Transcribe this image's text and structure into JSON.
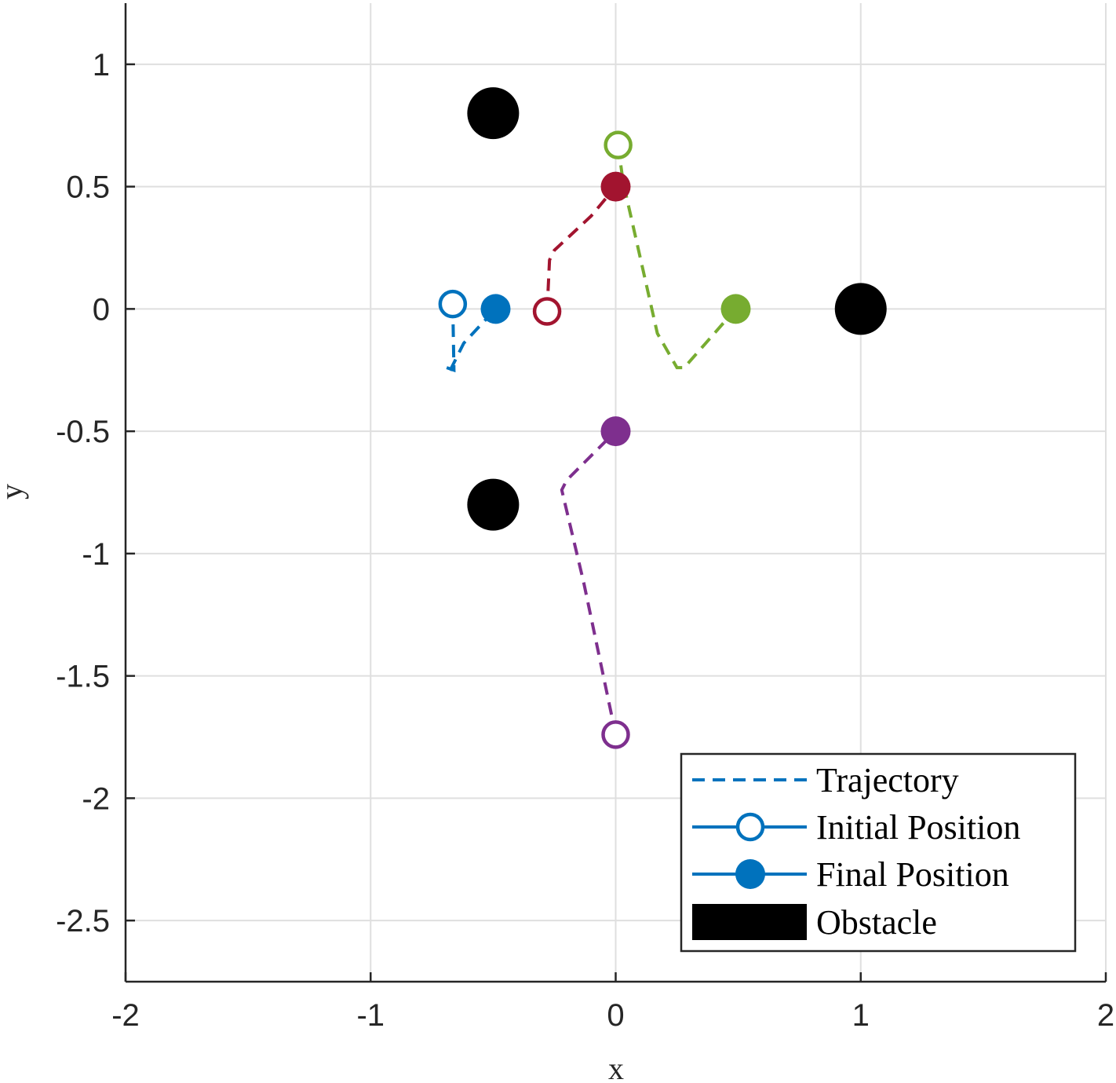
{
  "chart_data": {
    "type": "line",
    "xlabel": "x",
    "ylabel": "y",
    "xlim": [
      -2,
      2
    ],
    "ylim": [
      -2.75,
      1.25
    ],
    "xticks": [
      -2,
      -1,
      0,
      1,
      2
    ],
    "xtick_labels": [
      "-2",
      "-1",
      "0",
      "1",
      "2"
    ],
    "yticks": [
      -2.5,
      -2,
      -1.5,
      -1,
      -0.5,
      0,
      0.5,
      1
    ],
    "ytick_labels": [
      "-2.5",
      "-2",
      "-1.5",
      "-1",
      "-0.5",
      "0",
      "0.5",
      "1"
    ],
    "grid": true,
    "legend_position": "bottom-right",
    "legend": [
      {
        "label": "Trajectory",
        "kind": "dashed-line",
        "color": "#0072BD"
      },
      {
        "label": "Initial Position",
        "kind": "open-circle",
        "color": "#0072BD"
      },
      {
        "label": "Final Position",
        "kind": "filled-circle",
        "color": "#0072BD"
      },
      {
        "label": "Obstacle",
        "kind": "filled-rect",
        "color": "#000000"
      }
    ],
    "series": [
      {
        "color": "#0072BD",
        "trajectory": [
          [
            -0.665,
            0.02
          ],
          [
            -0.66,
            -0.25
          ],
          [
            -0.69,
            -0.24
          ],
          [
            -0.68,
            -0.26
          ],
          [
            -0.62,
            -0.14
          ],
          [
            -0.49,
            0.0
          ]
        ],
        "initial": [
          -0.665,
          0.02
        ],
        "final": [
          -0.49,
          0.0
        ]
      },
      {
        "color": "#A2142F",
        "trajectory": [
          [
            -0.28,
            -0.01
          ],
          [
            -0.27,
            0.2
          ],
          [
            -0.25,
            0.24
          ],
          [
            -0.1,
            0.38
          ],
          [
            0.0,
            0.5
          ]
        ],
        "initial": [
          -0.28,
          -0.01
        ],
        "final": [
          0.0,
          0.5
        ]
      },
      {
        "color": "#77AC30",
        "trajectory": [
          [
            0.01,
            0.67
          ],
          [
            0.03,
            0.52
          ],
          [
            0.17,
            -0.1
          ],
          [
            0.25,
            -0.24
          ],
          [
            0.28,
            -0.24
          ],
          [
            0.49,
            0.0
          ]
        ],
        "initial": [
          0.01,
          0.67
        ],
        "final": [
          0.49,
          0.0
        ]
      },
      {
        "color": "#7E2F8E",
        "trajectory": [
          [
            0.0,
            -1.74
          ],
          [
            -0.13,
            -1.12
          ],
          [
            -0.22,
            -0.74
          ],
          [
            -0.2,
            -0.7
          ],
          [
            0.0,
            -0.5
          ]
        ],
        "initial": [
          0.0,
          -1.74
        ],
        "final": [
          0.0,
          -0.5
        ]
      }
    ],
    "obstacles": [
      [
        -0.5,
        0.8
      ],
      [
        -0.5,
        -0.8
      ],
      [
        1.0,
        0.0
      ]
    ],
    "obstacle_color": "#000000"
  }
}
